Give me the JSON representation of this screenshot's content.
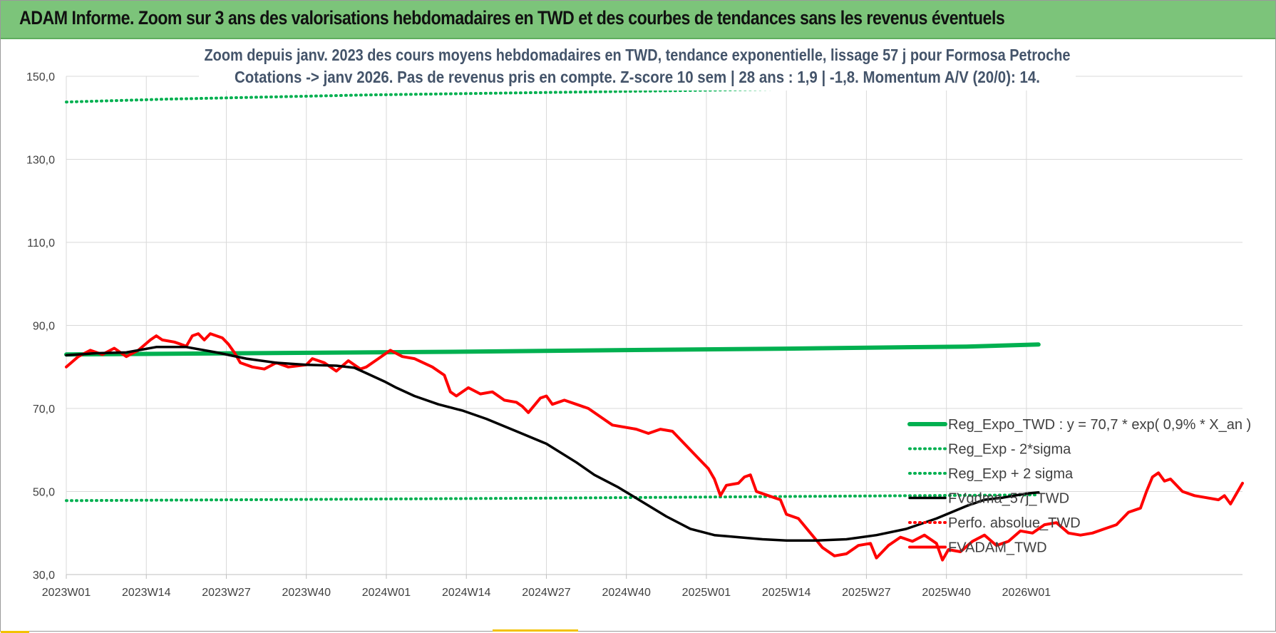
{
  "header": {
    "title": "ADAM Informe. Zoom sur 3 ans des valorisations hebdomadaires en TWD et des courbes de tendances sans les revenus éventuels"
  },
  "colors": {
    "banner": "#7cc47a",
    "reg_expo": "#00b050",
    "sigma": "#00b050",
    "fvgdma": "#000000",
    "perfo": "#ff0000",
    "fvadam": "#ff0000",
    "grid": "#d9d9d9"
  },
  "chart_data": {
    "type": "line",
    "title": "Zoom depuis janv. 2023 des cours moyens hebdomadaires en TWD, tendance exponentielle, lissage 57 j pour Formosa Petroche",
    "subtitle": "Cotations -> janv 2026. Pas de revenus pris en compte. Z-score 10 sem | 28 ans : 1,9 | -1,8. Momentum A/V (20/0): 14.",
    "xlabel": "",
    "ylabel": "",
    "ylim": [
      30,
      150
    ],
    "yticks": [
      "30,0",
      "50,0",
      "70,0",
      "90,0",
      "110,0",
      "130,0",
      "150,0"
    ],
    "xticks": [
      "2023W01",
      "2023W14",
      "2023W27",
      "2023W40",
      "2024W01",
      "2024W14",
      "2024W27",
      "2024W40",
      "2025W01",
      "2025W14",
      "2025W27",
      "2025W40",
      "2026W01"
    ],
    "x_range_weeks": [
      0,
      162
    ],
    "grid": true,
    "legend_position": "bottom-right",
    "series": [
      {
        "name": "Reg_Expo_TWD : y = 70,7 * exp( 0,9% *  X_an )",
        "style": "solid-thick",
        "color": "#00b050",
        "points": [
          [
            0,
            83.0
          ],
          [
            30,
            83.3
          ],
          [
            60,
            83.6
          ],
          [
            90,
            84.0
          ],
          [
            120,
            84.4
          ],
          [
            150,
            84.9
          ],
          [
            162,
            85.4
          ]
        ]
      },
      {
        "name": "Reg_Exp - 2*sigma",
        "style": "dotted",
        "color": "#00b050",
        "points": [
          [
            0,
            47.8
          ],
          [
            40,
            48.1
          ],
          [
            80,
            48.4
          ],
          [
            120,
            48.8
          ],
          [
            162,
            49.2
          ]
        ]
      },
      {
        "name": "Reg_Exp + 2 sigma",
        "style": "dotted",
        "color": "#00b050",
        "points": [
          [
            0,
            143.8
          ],
          [
            17,
            144.5
          ],
          [
            50,
            145.5
          ],
          [
            100,
            146.5
          ],
          [
            140,
            147.4
          ],
          [
            162,
            148.0
          ]
        ]
      },
      {
        "name": "FVgdma_57j_TWD",
        "style": "solid",
        "color": "#000000",
        "points": [
          [
            0,
            82.8
          ],
          [
            5,
            83.3
          ],
          [
            10,
            83.5
          ],
          [
            15,
            84.8
          ],
          [
            20,
            84.8
          ],
          [
            25,
            83.5
          ],
          [
            30,
            82.0
          ],
          [
            35,
            81.0
          ],
          [
            40,
            80.5
          ],
          [
            45,
            80.3
          ],
          [
            48,
            79.8
          ],
          [
            50,
            78.5
          ],
          [
            53,
            76.5
          ],
          [
            55,
            75.0
          ],
          [
            58,
            73.0
          ],
          [
            62,
            71.0
          ],
          [
            66,
            69.5
          ],
          [
            70,
            67.5
          ],
          [
            75,
            64.5
          ],
          [
            80,
            61.5
          ],
          [
            85,
            57.0
          ],
          [
            88,
            54.0
          ],
          [
            92,
            51.0
          ],
          [
            96,
            47.5
          ],
          [
            100,
            44.0
          ],
          [
            104,
            41.0
          ],
          [
            108,
            39.5
          ],
          [
            112,
            39.0
          ],
          [
            116,
            38.5
          ],
          [
            120,
            38.2
          ],
          [
            125,
            38.2
          ],
          [
            130,
            38.5
          ],
          [
            135,
            39.5
          ],
          [
            140,
            41.0
          ],
          [
            145,
            43.5
          ],
          [
            150,
            46.5
          ],
          [
            153,
            48.0
          ],
          [
            156,
            48.5
          ],
          [
            160,
            49.5
          ],
          [
            162,
            49.8
          ]
        ]
      },
      {
        "name": "Perfo. absolue_TWD",
        "style": "dotted",
        "color": "#ff0000",
        "points": []
      },
      {
        "name": "FVADAM_TWD",
        "style": "solid-thick",
        "color": "#ff0000",
        "points": [
          [
            0,
            80.0
          ],
          [
            2,
            82.5
          ],
          [
            4,
            84.0
          ],
          [
            6,
            83.0
          ],
          [
            8,
            84.5
          ],
          [
            10,
            82.5
          ],
          [
            12,
            84.0
          ],
          [
            14,
            86.5
          ],
          [
            15,
            87.5
          ],
          [
            16,
            86.5
          ],
          [
            18,
            86.0
          ],
          [
            20,
            85.0
          ],
          [
            21,
            87.5
          ],
          [
            22,
            88.0
          ],
          [
            23,
            86.5
          ],
          [
            24,
            88.0
          ],
          [
            26,
            87.0
          ],
          [
            27,
            85.5
          ],
          [
            28,
            83.5
          ],
          [
            29,
            81.0
          ],
          [
            31,
            80.0
          ],
          [
            33,
            79.5
          ],
          [
            35,
            81.0
          ],
          [
            37,
            80.0
          ],
          [
            40,
            80.5
          ],
          [
            41,
            82.0
          ],
          [
            43,
            81.0
          ],
          [
            45,
            79.0
          ],
          [
            47,
            81.5
          ],
          [
            49,
            79.5
          ],
          [
            50,
            80.0
          ],
          [
            52,
            82.0
          ],
          [
            54,
            84.0
          ],
          [
            56,
            82.5
          ],
          [
            58,
            82.0
          ],
          [
            61,
            80.0
          ],
          [
            63,
            78.0
          ],
          [
            64,
            74.0
          ],
          [
            65,
            73.0
          ],
          [
            67,
            75.0
          ],
          [
            69,
            73.5
          ],
          [
            71,
            74.0
          ],
          [
            73,
            72.0
          ],
          [
            75,
            71.5
          ],
          [
            76,
            70.5
          ],
          [
            77,
            69.0
          ],
          [
            79,
            72.5
          ],
          [
            80,
            73.0
          ],
          [
            81,
            71.0
          ],
          [
            83,
            72.0
          ],
          [
            85,
            71.0
          ],
          [
            87,
            70.0
          ],
          [
            89,
            68.0
          ],
          [
            91,
            66.0
          ],
          [
            93,
            65.5
          ],
          [
            95,
            65.0
          ],
          [
            97,
            64.0
          ],
          [
            99,
            65.0
          ],
          [
            101,
            64.5
          ],
          [
            103,
            61.5
          ],
          [
            105,
            58.5
          ],
          [
            107,
            55.5
          ],
          [
            108,
            53.0
          ],
          [
            109,
            49.0
          ],
          [
            110,
            51.5
          ],
          [
            112,
            52.0
          ],
          [
            113,
            53.5
          ],
          [
            114,
            54.0
          ],
          [
            115,
            50.0
          ],
          [
            117,
            49.0
          ],
          [
            119,
            48.0
          ],
          [
            120,
            44.5
          ],
          [
            122,
            43.5
          ],
          [
            124,
            40.0
          ],
          [
            126,
            36.5
          ],
          [
            128,
            34.5
          ],
          [
            130,
            35.0
          ],
          [
            132,
            37.0
          ],
          [
            134,
            37.5
          ],
          [
            135,
            34.0
          ],
          [
            137,
            37.0
          ],
          [
            139,
            39.0
          ],
          [
            141,
            38.0
          ],
          [
            143,
            39.5
          ],
          [
            145,
            37.5
          ],
          [
            146,
            33.5
          ],
          [
            147,
            36.0
          ],
          [
            149,
            35.5
          ],
          [
            151,
            38.0
          ],
          [
            153,
            39.5
          ],
          [
            155,
            37.0
          ],
          [
            157,
            38.0
          ],
          [
            159,
            40.5
          ],
          [
            161,
            40.0
          ],
          [
            163,
            42.0
          ],
          [
            165,
            42.5
          ],
          [
            167,
            40.0
          ],
          [
            169,
            39.5
          ],
          [
            171,
            40.0
          ],
          [
            173,
            41.0
          ],
          [
            175,
            42.0
          ],
          [
            177,
            45.0
          ],
          [
            179,
            46.0
          ],
          [
            180,
            50.0
          ],
          [
            181,
            53.5
          ],
          [
            182,
            54.5
          ],
          [
            183,
            52.5
          ],
          [
            184,
            53.0
          ],
          [
            186,
            50.0
          ],
          [
            188,
            49.0
          ],
          [
            190,
            48.5
          ],
          [
            192,
            48.0
          ],
          [
            193,
            49.0
          ],
          [
            194,
            47.0
          ],
          [
            195,
            49.5
          ],
          [
            196,
            52.0
          ]
        ]
      }
    ]
  }
}
